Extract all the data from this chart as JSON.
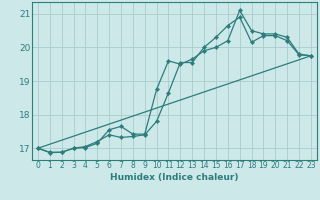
{
  "xlabel": "Humidex (Indice chaleur)",
  "bg_color": "#cce8e8",
  "grid_color": "#aacccc",
  "line_color": "#2d7d7d",
  "xlim": [
    -0.5,
    23.5
  ],
  "ylim": [
    16.65,
    21.35
  ],
  "xticks": [
    0,
    1,
    2,
    3,
    4,
    5,
    6,
    7,
    8,
    9,
    10,
    11,
    12,
    13,
    14,
    15,
    16,
    17,
    18,
    19,
    20,
    21,
    22,
    23
  ],
  "yticks": [
    17,
    18,
    19,
    20,
    21
  ],
  "lines": [
    {
      "x": [
        0,
        1,
        2,
        3,
        4,
        5,
        6,
        7,
        8,
        9,
        10,
        11,
        12,
        13,
        14,
        15,
        16,
        17,
        18,
        19,
        20,
        21,
        22,
        23
      ],
      "y": [
        17.0,
        16.87,
        16.88,
        17.0,
        17.02,
        17.15,
        17.55,
        17.65,
        17.42,
        17.42,
        18.75,
        19.6,
        19.5,
        19.65,
        19.9,
        20.0,
        20.2,
        21.1,
        20.5,
        20.4,
        20.4,
        20.3,
        19.8,
        19.75
      ],
      "has_markers": true
    },
    {
      "x": [
        0,
        1,
        2,
        3,
        4,
        5,
        6,
        7,
        8,
        9,
        10,
        11,
        12,
        13,
        14,
        15,
        16,
        17,
        18,
        19,
        20,
        21,
        22,
        23
      ],
      "y": [
        17.0,
        16.88,
        16.88,
        17.0,
        17.05,
        17.2,
        17.4,
        17.32,
        17.35,
        17.4,
        17.8,
        18.65,
        19.55,
        19.55,
        20.0,
        20.3,
        20.65,
        20.9,
        20.15,
        20.35,
        20.35,
        20.2,
        19.78,
        19.75
      ],
      "has_markers": true
    },
    {
      "x": [
        0,
        23
      ],
      "y": [
        17.0,
        19.75
      ],
      "has_markers": false
    }
  ]
}
